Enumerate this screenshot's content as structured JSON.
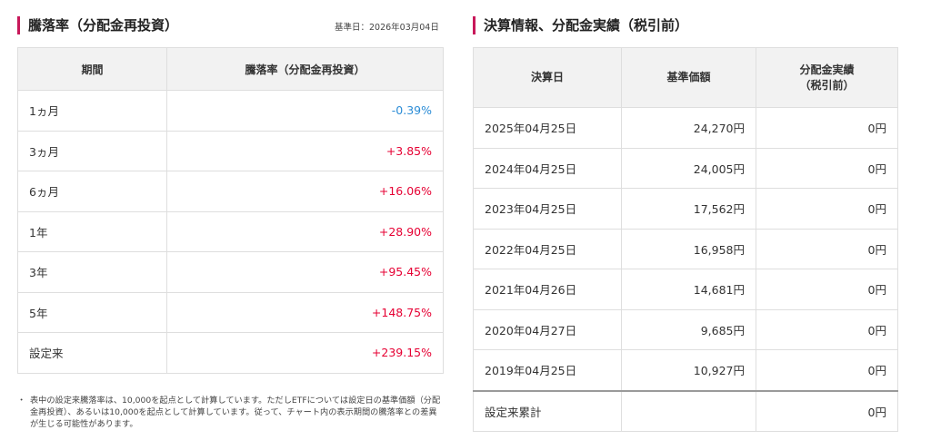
{
  "performance": {
    "title": "騰落率（分配金再投資）",
    "base_date": "基準日：2026年03月04日",
    "headers": [
      "期間",
      "騰落率（分配金再投資）"
    ],
    "rows": [
      {
        "period": "1ヵ月",
        "value": "-0.39%"
      },
      {
        "period": "3ヵ月",
        "value": "+3.85%"
      },
      {
        "period": "6ヵ月",
        "value": "+16.06%"
      },
      {
        "period": "1年",
        "value": "+28.90%"
      },
      {
        "period": "3年",
        "value": "+95.45%"
      },
      {
        "period": "5年",
        "value": "+148.75%"
      },
      {
        "period": "設定来",
        "value": "+239.15%"
      }
    ],
    "colors": {
      "positive": "#e60033",
      "negative": "#2b8cd6"
    },
    "footnote_bullet": "・",
    "footnote": "表中の設定来騰落率は、10,000を起点として計算しています。ただしETFについては設定日の基準価額（分配金再投資）、あるいは10,000を起点として計算しています。従って、チャート内の表示期間の騰落率との差異が生じる可能性があります。"
  },
  "dividends": {
    "title": "決算情報、分配金実績（税引前）",
    "headers": [
      "決算日",
      "基準価額",
      "分配金実績\n（税引前）"
    ],
    "rows": [
      {
        "date": "2025年04月25日",
        "nav": "24,270円",
        "dividend": "0円"
      },
      {
        "date": "2024年04月25日",
        "nav": "24,005円",
        "dividend": "0円"
      },
      {
        "date": "2023年04月25日",
        "nav": "17,562円",
        "dividend": "0円"
      },
      {
        "date": "2022年04月25日",
        "nav": "16,958円",
        "dividend": "0円"
      },
      {
        "date": "2021年04月26日",
        "nav": "14,681円",
        "dividend": "0円"
      },
      {
        "date": "2020年04月27日",
        "nav": "9,685円",
        "dividend": "0円"
      },
      {
        "date": "2019年04月25日",
        "nav": "10,927円",
        "dividend": "0円"
      }
    ],
    "total": {
      "label": "設定来累計",
      "nav": "",
      "dividend": "0円"
    }
  },
  "accent_color": "#c8185a"
}
